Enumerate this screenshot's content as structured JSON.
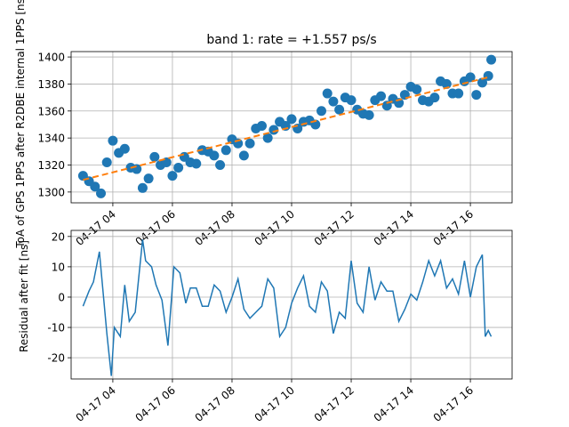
{
  "chart_data": [
    {
      "type": "scatter",
      "title": "band 1: rate = +1.557 ps/s",
      "ylabel": "ToA of GPS 1PPS after R2DBE internal 1PPS [ns]",
      "xlabel": "",
      "x_tick_labels": [
        "04-17 04",
        "04-17 06",
        "04-17 08",
        "04-17 10",
        "04-17 12",
        "04-17 14",
        "04-17 16"
      ],
      "x_tick_hours": [
        4,
        6,
        8,
        10,
        12,
        14,
        16
      ],
      "xlim_hours": [
        2.6,
        17.4
      ],
      "yticks": [
        1300,
        1320,
        1340,
        1360,
        1380,
        1400
      ],
      "ylim": [
        1292,
        1404
      ],
      "grid": true,
      "series": [
        {
          "kind": "points",
          "color": "#1f77b4",
          "x": [
            3.0,
            3.2,
            3.4,
            3.6,
            3.8,
            4.0,
            4.2,
            4.4,
            4.6,
            4.8,
            5.0,
            5.2,
            5.4,
            5.6,
            5.8,
            6.0,
            6.2,
            6.4,
            6.6,
            6.8,
            7.0,
            7.2,
            7.4,
            7.6,
            7.8,
            8.0,
            8.2,
            8.4,
            8.6,
            8.8,
            9.0,
            9.2,
            9.4,
            9.6,
            9.8,
            10.0,
            10.2,
            10.4,
            10.6,
            10.8,
            11.0,
            11.2,
            11.4,
            11.6,
            11.8,
            12.0,
            12.2,
            12.4,
            12.6,
            12.8,
            13.0,
            13.2,
            13.4,
            13.6,
            13.8,
            14.0,
            14.2,
            14.4,
            14.6,
            14.8,
            15.0,
            15.2,
            15.4,
            15.6,
            15.8,
            16.0,
            16.2,
            16.4,
            16.6,
            16.7
          ],
          "y": [
            1312,
            1308,
            1304,
            1299,
            1322,
            1338,
            1329,
            1332,
            1318,
            1317,
            1303,
            1310,
            1326,
            1320,
            1322,
            1312,
            1318,
            1326,
            1322,
            1321,
            1331,
            1330,
            1327,
            1320,
            1331,
            1339,
            1336,
            1327,
            1336,
            1347,
            1349,
            1340,
            1346,
            1352,
            1349,
            1354,
            1347,
            1352,
            1353,
            1350,
            1360,
            1373,
            1367,
            1361,
            1370,
            1368,
            1361,
            1358,
            1357,
            1368,
            1371,
            1364,
            1369,
            1366,
            1372,
            1378,
            1376,
            1368,
            1367,
            1370,
            1382,
            1380,
            1373,
            1373,
            1382,
            1385,
            1372,
            1381,
            1386,
            1398
          ]
        }
      ],
      "fit_line": {
        "color": "#ff7f0e",
        "style": "dashed",
        "x": [
          3.0,
          16.6
        ],
        "y": [
          1309,
          1385
        ]
      }
    },
    {
      "type": "line",
      "title": "",
      "ylabel": "Residual after fit [ns]",
      "xlabel": "",
      "x_tick_labels": [
        "04-17 04",
        "04-17 06",
        "04-17 08",
        "04-17 10",
        "04-17 12",
        "04-17 14",
        "04-17 16"
      ],
      "x_tick_hours": [
        4,
        6,
        8,
        10,
        12,
        14,
        16
      ],
      "xlim_hours": [
        2.6,
        17.4
      ],
      "yticks": [
        -20,
        -10,
        0,
        10,
        20
      ],
      "ylim": [
        -27,
        22
      ],
      "grid": true,
      "series": [
        {
          "kind": "line",
          "color": "#1f77b4",
          "x": [
            3.0,
            3.2,
            3.35,
            3.55,
            3.8,
            3.95,
            4.05,
            4.25,
            4.4,
            4.55,
            4.75,
            5.0,
            5.1,
            5.3,
            5.45,
            5.65,
            5.85,
            6.05,
            6.25,
            6.45,
            6.6,
            6.8,
            7.0,
            7.2,
            7.4,
            7.6,
            7.8,
            8.0,
            8.2,
            8.4,
            8.6,
            8.8,
            9.0,
            9.2,
            9.4,
            9.6,
            9.8,
            10.0,
            10.2,
            10.4,
            10.6,
            10.8,
            11.0,
            11.2,
            11.4,
            11.6,
            11.8,
            12.0,
            12.2,
            12.4,
            12.6,
            12.8,
            13.0,
            13.2,
            13.4,
            13.6,
            13.8,
            14.0,
            14.2,
            14.4,
            14.6,
            14.8,
            15.0,
            15.2,
            15.4,
            15.6,
            15.8,
            16.0,
            16.2,
            16.4,
            16.5,
            16.6,
            16.7
          ],
          "y": [
            -3,
            2,
            5,
            15,
            -12,
            -26,
            -10,
            -13,
            4,
            -8,
            -5,
            19,
            12,
            10,
            4,
            -1,
            -16,
            10,
            8,
            -2,
            3,
            3,
            -3,
            -3,
            4,
            2,
            -5,
            0,
            6,
            -4,
            -7,
            -5,
            -3,
            6,
            3,
            -13,
            -10,
            -2,
            3,
            7,
            -3,
            -5,
            5,
            2,
            -12,
            -5,
            -7,
            12,
            -2,
            -5,
            10,
            -1,
            5,
            2,
            2,
            -8,
            -4,
            1,
            -1,
            5,
            12,
            7,
            12,
            3,
            6,
            1,
            12,
            0,
            10,
            14,
            -13,
            -11,
            -13
          ]
        }
      ]
    }
  ]
}
